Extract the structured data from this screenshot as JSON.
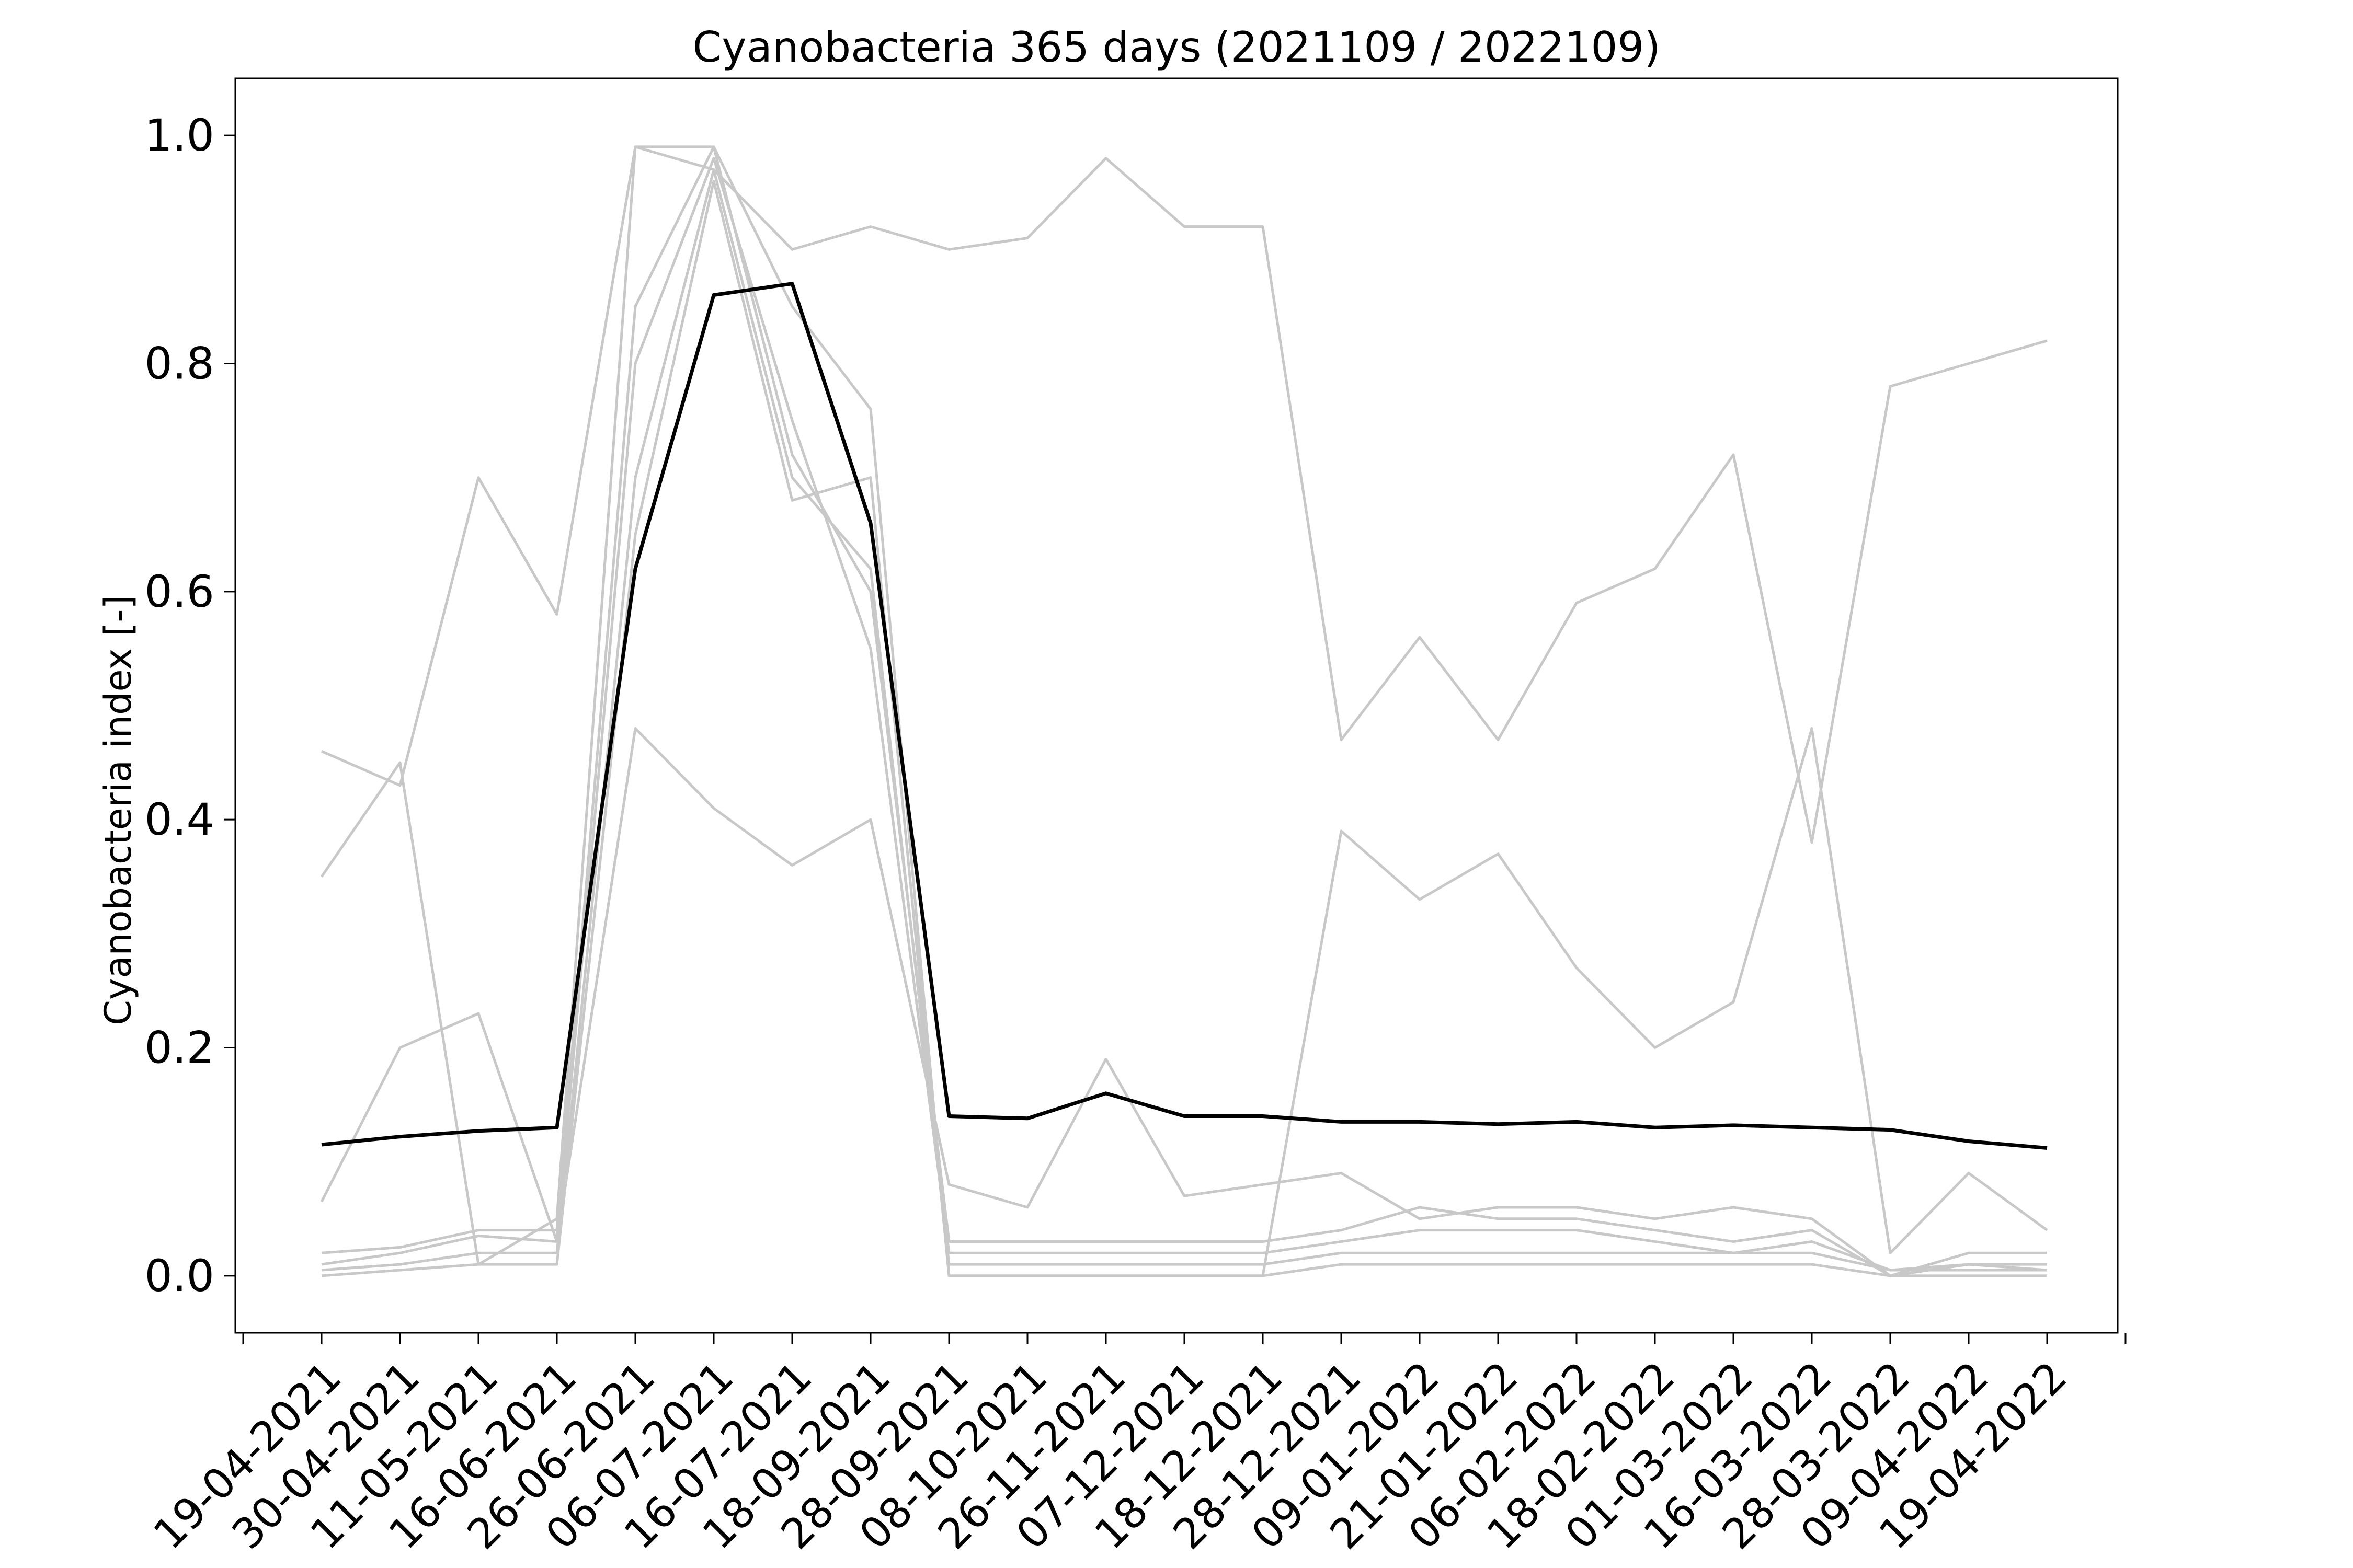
{
  "chart_data": {
    "type": "line",
    "title": "Cyanobacteria 365 days (2021109 / 2022109)",
    "ylabel": "Cyanobacteria index [-]",
    "xlabel": "",
    "ylim": [
      -0.05,
      1.05
    ],
    "yticks": [
      "0.0",
      "0.2",
      "0.4",
      "0.6",
      "0.8",
      "1.0"
    ],
    "ytick_values": [
      0.0,
      0.2,
      0.4,
      0.6,
      0.8,
      1.0
    ],
    "x_categories": [
      "19-04-2021",
      "30-04-2021",
      "11-05-2021",
      "16-06-2021",
      "26-06-2021",
      "06-07-2021",
      "16-07-2021",
      "18-09-2021",
      "28-09-2021",
      "08-10-2021",
      "26-11-2021",
      "07-12-2021",
      "18-12-2021",
      "28-12-2021",
      "09-01-2022",
      "21-01-2022",
      "06-02-2022",
      "18-02-2022",
      "01-03-2022",
      "16-03-2022",
      "28-03-2022",
      "09-04-2022",
      "19-04-2022"
    ],
    "grid": false,
    "colors": {
      "background_series": "#c8c8c8",
      "mean_series": "#000000"
    },
    "series": [
      {
        "style": "mean",
        "x": [
          0,
          1,
          2,
          3,
          4,
          5,
          6,
          7,
          8,
          9,
          10,
          11,
          12,
          13,
          14,
          15,
          16,
          17,
          18,
          19,
          20,
          21,
          22
        ],
        "values": [
          0.115,
          0.122,
          0.127,
          0.13,
          0.62,
          0.86,
          0.87,
          0.66,
          0.14,
          0.138,
          0.16,
          0.14,
          0.14,
          0.135,
          0.135,
          0.133,
          0.135,
          0.13,
          0.132,
          0.13,
          0.128,
          0.118,
          0.112
        ]
      },
      {
        "style": "background",
        "x": [
          0,
          1,
          2,
          3,
          4,
          5,
          6,
          7,
          8,
          9,
          10,
          11,
          12,
          13,
          14,
          15,
          16,
          17,
          18,
          19,
          20,
          21,
          22
        ],
        "values": [
          0.46,
          0.43,
          0.7,
          0.58,
          0.99,
          0.97,
          0.9,
          0.92,
          0.9,
          0.91,
          0.98,
          0.92,
          0.92,
          0.47,
          0.56,
          0.47,
          0.59,
          0.62,
          0.72,
          0.38,
          0.78,
          0.8,
          0.82
        ]
      },
      {
        "style": "background",
        "x": [
          0,
          1,
          2,
          3,
          4,
          5,
          6,
          7,
          8,
          9,
          10,
          11,
          12,
          13,
          14,
          15,
          16,
          17,
          18,
          19,
          20,
          21,
          22
        ],
        "values": [
          0.35,
          0.45,
          0.01,
          0.05,
          0.99,
          0.99,
          0.85,
          0.76,
          0.0,
          0.0,
          0.0,
          0.0,
          0.0,
          0.39,
          0.33,
          0.37,
          0.27,
          0.2,
          0.24,
          0.48,
          0.02,
          0.09,
          0.04
        ]
      },
      {
        "style": "background",
        "x": [
          0,
          1,
          2,
          3,
          4,
          5,
          6,
          7,
          8,
          9,
          10,
          11,
          12,
          13,
          14,
          15,
          16,
          17,
          18,
          19,
          20,
          21,
          22
        ],
        "values": [
          0.065,
          0.2,
          0.23,
          0.03,
          0.48,
          0.41,
          0.36,
          0.4,
          0.08,
          0.06,
          0.19,
          0.07,
          0.08,
          0.09,
          0.05,
          0.06,
          0.06,
          0.05,
          0.06,
          0.05,
          0.0,
          0.02,
          0.02
        ]
      },
      {
        "style": "background",
        "x": [
          0,
          1,
          2,
          3,
          4,
          5,
          6,
          7,
          8,
          9,
          10,
          11,
          12,
          13,
          14,
          15,
          16,
          17,
          18,
          19,
          20,
          21,
          22
        ],
        "values": [
          0.02,
          0.025,
          0.04,
          0.04,
          0.85,
          0.99,
          0.72,
          0.6,
          0.03,
          0.03,
          0.03,
          0.03,
          0.03,
          0.04,
          0.06,
          0.05,
          0.05,
          0.04,
          0.03,
          0.04,
          0.0,
          0.01,
          0.01
        ]
      },
      {
        "style": "background",
        "x": [
          0,
          1,
          2,
          3,
          4,
          5,
          6,
          7,
          8,
          9,
          10,
          11,
          12,
          13,
          14,
          15,
          16,
          17,
          18,
          19,
          20,
          21,
          22
        ],
        "values": [
          0.01,
          0.02,
          0.035,
          0.03,
          0.8,
          0.98,
          0.75,
          0.55,
          0.02,
          0.02,
          0.02,
          0.02,
          0.02,
          0.03,
          0.04,
          0.04,
          0.04,
          0.03,
          0.02,
          0.03,
          0.005,
          0.01,
          0.005
        ]
      },
      {
        "style": "background",
        "x": [
          0,
          1,
          2,
          3,
          4,
          5,
          6,
          7,
          8,
          9,
          10,
          11,
          12,
          13,
          14,
          15,
          16,
          17,
          18,
          19,
          20,
          21,
          22
        ],
        "values": [
          0.005,
          0.01,
          0.02,
          0.02,
          0.7,
          0.97,
          0.7,
          0.62,
          0.01,
          0.01,
          0.01,
          0.01,
          0.01,
          0.02,
          0.02,
          0.02,
          0.02,
          0.02,
          0.02,
          0.02,
          0.005,
          0.005,
          0.005
        ]
      },
      {
        "style": "background",
        "x": [
          0,
          1,
          2,
          3,
          4,
          5,
          6,
          7,
          8,
          9,
          10,
          11,
          12,
          13,
          14,
          15,
          16,
          17,
          18,
          19,
          20,
          21,
          22
        ],
        "values": [
          0.0,
          0.005,
          0.01,
          0.01,
          0.65,
          0.96,
          0.68,
          0.7,
          0.0,
          0.0,
          0.0,
          0.0,
          0.0,
          0.01,
          0.01,
          0.01,
          0.01,
          0.01,
          0.01,
          0.01,
          0.0,
          0.0,
          0.0
        ]
      }
    ]
  }
}
